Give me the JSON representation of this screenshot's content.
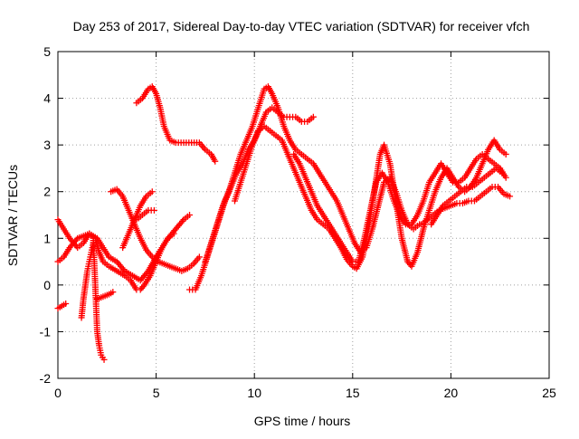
{
  "chart_data": {
    "type": "scatter",
    "title": "Day 253 of 2017, Sidereal Day-to-day VTEC variation (SDTVAR) for receiver vfch",
    "xlabel": "GPS time / hours",
    "ylabel": "SDTVAR / TECUs",
    "xlim": [
      0,
      25
    ],
    "ylim": [
      -2,
      5
    ],
    "x_ticks": [
      "0",
      "5",
      "10",
      "15",
      "20",
      "25"
    ],
    "y_ticks": [
      "-2",
      "-1",
      "0",
      "1",
      "2",
      "3",
      "4",
      "5"
    ],
    "grid": true,
    "marker": "plus",
    "color": "#ff0000",
    "series": [
      {
        "points": [
          [
            0.0,
            1.4
          ],
          [
            0.3,
            1.2
          ],
          [
            0.6,
            1.0
          ],
          [
            1.0,
            0.8
          ],
          [
            1.3,
            0.9
          ],
          [
            1.6,
            1.1
          ],
          [
            1.9,
            1.0
          ],
          [
            2.1,
            0.7
          ],
          [
            2.3,
            0.5
          ],
          [
            2.6,
            0.4
          ],
          [
            3.0,
            0.3
          ],
          [
            3.4,
            0.2
          ],
          [
            3.7,
            0.1
          ],
          [
            4.0,
            -0.1
          ],
          [
            4.2,
            -0.1
          ],
          [
            4.4,
            0.0
          ],
          [
            4.7,
            0.2
          ],
          [
            5.0,
            0.5
          ],
          [
            5.3,
            0.8
          ],
          [
            5.6,
            1.0
          ],
          [
            6.0,
            1.2
          ],
          [
            6.4,
            1.4
          ],
          [
            6.7,
            1.5
          ]
        ]
      },
      {
        "points": [
          [
            0.0,
            0.5
          ],
          [
            0.3,
            0.6
          ],
          [
            0.6,
            0.8
          ],
          [
            1.0,
            1.0
          ],
          [
            1.3,
            1.05
          ],
          [
            1.6,
            1.1
          ],
          [
            2.0,
            1.0
          ],
          [
            2.3,
            0.8
          ],
          [
            2.6,
            0.6
          ],
          [
            3.0,
            0.5
          ],
          [
            3.4,
            0.3
          ],
          [
            3.8,
            0.2
          ],
          [
            4.2,
            0.1
          ],
          [
            4.6,
            0.3
          ],
          [
            5.0,
            0.6
          ],
          [
            5.3,
            0.8
          ],
          [
            5.6,
            1.0
          ],
          [
            5.9,
            1.1
          ]
        ]
      },
      {
        "points": [
          [
            0.0,
            -0.5
          ],
          [
            0.2,
            -0.45
          ],
          [
            0.4,
            -0.4
          ]
        ]
      },
      {
        "points": [
          [
            1.2,
            -0.7
          ],
          [
            1.3,
            -0.3
          ],
          [
            1.4,
            0.0
          ],
          [
            1.5,
            0.3
          ],
          [
            1.6,
            0.5
          ],
          [
            1.7,
            0.7
          ],
          [
            1.8,
            0.9
          ]
        ]
      },
      {
        "points": [
          [
            1.8,
            1.0
          ],
          [
            1.85,
            0.5
          ],
          [
            1.9,
            0.0
          ],
          [
            1.95,
            -0.5
          ],
          [
            2.0,
            -1.0
          ],
          [
            2.1,
            -1.3
          ],
          [
            2.2,
            -1.5
          ],
          [
            2.35,
            -1.6
          ]
        ]
      },
      {
        "points": [
          [
            2.0,
            -0.3
          ],
          [
            2.3,
            -0.25
          ],
          [
            2.6,
            -0.2
          ],
          [
            2.8,
            -0.15
          ]
        ]
      },
      {
        "points": [
          [
            2.7,
            2.0
          ],
          [
            3.0,
            2.05
          ],
          [
            3.3,
            1.9
          ],
          [
            3.6,
            1.6
          ],
          [
            3.9,
            1.3
          ],
          [
            4.2,
            1.0
          ],
          [
            4.5,
            0.75
          ],
          [
            4.8,
            0.6
          ],
          [
            5.1,
            0.5
          ],
          [
            5.4,
            0.45
          ],
          [
            5.7,
            0.4
          ],
          [
            6.0,
            0.35
          ],
          [
            6.3,
            0.3
          ],
          [
            6.6,
            0.35
          ],
          [
            6.9,
            0.45
          ],
          [
            7.2,
            0.6
          ]
        ]
      },
      {
        "points": [
          [
            3.3,
            0.8
          ],
          [
            3.6,
            1.1
          ],
          [
            3.9,
            1.4
          ],
          [
            4.2,
            1.7
          ],
          [
            4.5,
            1.9
          ],
          [
            4.8,
            2.0
          ]
        ]
      },
      {
        "points": [
          [
            4.0,
            1.4
          ],
          [
            4.3,
            1.5
          ],
          [
            4.6,
            1.6
          ],
          [
            4.9,
            1.6
          ]
        ]
      },
      {
        "points": [
          [
            4.0,
            3.9
          ],
          [
            4.3,
            4.0
          ],
          [
            4.6,
            4.2
          ],
          [
            4.8,
            4.25
          ],
          [
            5.0,
            4.1
          ],
          [
            5.2,
            3.8
          ],
          [
            5.4,
            3.4
          ],
          [
            5.7,
            3.1
          ],
          [
            6.0,
            3.05
          ],
          [
            6.4,
            3.05
          ],
          [
            6.8,
            3.05
          ],
          [
            7.2,
            3.05
          ],
          [
            7.5,
            2.9
          ],
          [
            7.8,
            2.8
          ],
          [
            8.0,
            2.65
          ]
        ]
      },
      {
        "points": [
          [
            6.7,
            -0.1
          ],
          [
            7.0,
            -0.1
          ],
          [
            7.3,
            0.2
          ],
          [
            7.6,
            0.6
          ],
          [
            7.9,
            1.0
          ],
          [
            8.2,
            1.4
          ],
          [
            8.5,
            1.8
          ],
          [
            8.8,
            2.1
          ],
          [
            9.1,
            2.4
          ],
          [
            9.4,
            2.6
          ],
          [
            9.7,
            2.9
          ],
          [
            10.0,
            3.1
          ],
          [
            10.3,
            3.4
          ],
          [
            10.6,
            3.7
          ],
          [
            10.9,
            3.8
          ],
          [
            11.2,
            3.7
          ],
          [
            11.5,
            3.6
          ],
          [
            11.8,
            3.6
          ],
          [
            12.1,
            3.6
          ],
          [
            12.4,
            3.5
          ],
          [
            12.7,
            3.5
          ],
          [
            13.0,
            3.6
          ]
        ]
      },
      {
        "points": [
          [
            7.5,
            0.5
          ],
          [
            7.8,
            0.9
          ],
          [
            8.1,
            1.3
          ],
          [
            8.4,
            1.7
          ],
          [
            8.7,
            2.0
          ],
          [
            9.0,
            2.4
          ],
          [
            9.3,
            2.8
          ],
          [
            9.6,
            3.1
          ],
          [
            9.9,
            3.4
          ],
          [
            10.2,
            3.8
          ],
          [
            10.5,
            4.2
          ],
          [
            10.7,
            4.25
          ],
          [
            10.9,
            4.1
          ],
          [
            11.2,
            3.8
          ],
          [
            11.5,
            3.4
          ],
          [
            11.8,
            3.1
          ],
          [
            12.1,
            2.9
          ],
          [
            12.4,
            2.8
          ],
          [
            12.7,
            2.7
          ],
          [
            13.0,
            2.6
          ],
          [
            13.3,
            2.4
          ],
          [
            13.6,
            2.2
          ],
          [
            13.9,
            2.0
          ],
          [
            14.2,
            1.8
          ],
          [
            14.5,
            1.5
          ],
          [
            14.8,
            1.2
          ],
          [
            15.1,
            0.9
          ],
          [
            15.4,
            0.7
          ],
          [
            15.7,
            0.8
          ],
          [
            16.0,
            1.2
          ],
          [
            16.3,
            1.7
          ],
          [
            16.6,
            2.2
          ],
          [
            16.9,
            2.3
          ],
          [
            17.2,
            2.0
          ],
          [
            17.5,
            1.6
          ],
          [
            17.8,
            1.3
          ],
          [
            18.1,
            1.2
          ],
          [
            18.4,
            1.3
          ]
        ]
      },
      {
        "points": [
          [
            9.0,
            1.8
          ],
          [
            9.3,
            2.2
          ],
          [
            9.6,
            2.6
          ],
          [
            9.9,
            3.0
          ],
          [
            10.2,
            3.3
          ],
          [
            10.5,
            3.4
          ],
          [
            10.8,
            3.3
          ],
          [
            11.1,
            3.2
          ],
          [
            11.4,
            3.1
          ],
          [
            11.7,
            2.8
          ],
          [
            12.0,
            2.5
          ],
          [
            12.3,
            2.2
          ],
          [
            12.6,
            1.9
          ],
          [
            12.9,
            1.6
          ],
          [
            13.2,
            1.4
          ],
          [
            13.5,
            1.3
          ],
          [
            13.8,
            1.2
          ],
          [
            14.1,
            1.0
          ],
          [
            14.4,
            0.8
          ],
          [
            14.7,
            0.55
          ],
          [
            15.0,
            0.4
          ],
          [
            15.2,
            0.35
          ],
          [
            15.5,
            0.6
          ],
          [
            15.8,
            1.2
          ],
          [
            16.1,
            2.0
          ],
          [
            16.4,
            2.8
          ],
          [
            16.6,
            3.0
          ],
          [
            16.9,
            2.6
          ],
          [
            17.2,
            1.8
          ],
          [
            17.5,
            1.0
          ],
          [
            17.8,
            0.5
          ],
          [
            18.0,
            0.4
          ],
          [
            18.3,
            0.7
          ],
          [
            18.6,
            1.2
          ],
          [
            18.9,
            1.6
          ],
          [
            19.2,
            2.0
          ],
          [
            19.5,
            2.3
          ],
          [
            19.8,
            2.5
          ],
          [
            20.1,
            2.3
          ],
          [
            20.4,
            2.1
          ],
          [
            20.7,
            2.0
          ],
          [
            21.0,
            2.1
          ],
          [
            21.3,
            2.3
          ],
          [
            21.6,
            2.6
          ],
          [
            21.9,
            2.9
          ],
          [
            22.2,
            3.1
          ],
          [
            22.5,
            2.9
          ],
          [
            22.8,
            2.8
          ]
        ]
      },
      {
        "points": [
          [
            12.0,
            2.8
          ],
          [
            12.3,
            2.6
          ],
          [
            12.6,
            2.3
          ],
          [
            12.9,
            2.0
          ],
          [
            13.2,
            1.7
          ],
          [
            13.5,
            1.5
          ],
          [
            13.8,
            1.3
          ],
          [
            14.1,
            1.1
          ],
          [
            14.4,
            0.9
          ],
          [
            14.7,
            0.7
          ],
          [
            15.0,
            0.5
          ],
          [
            15.3,
            0.5
          ],
          [
            15.6,
            1.0
          ],
          [
            15.9,
            1.6
          ],
          [
            16.2,
            2.2
          ],
          [
            16.5,
            2.4
          ],
          [
            16.8,
            2.2
          ],
          [
            17.1,
            1.8
          ],
          [
            17.4,
            1.5
          ],
          [
            17.7,
            1.3
          ],
          [
            18.0,
            1.3
          ],
          [
            18.3,
            1.5
          ],
          [
            18.6,
            1.8
          ],
          [
            18.9,
            2.2
          ],
          [
            19.2,
            2.4
          ],
          [
            19.5,
            2.6
          ],
          [
            19.8,
            2.4
          ],
          [
            20.1,
            2.2
          ],
          [
            20.4,
            2.2
          ],
          [
            20.7,
            2.3
          ],
          [
            21.0,
            2.5
          ],
          [
            21.3,
            2.7
          ],
          [
            21.6,
            2.8
          ],
          [
            21.9,
            2.7
          ],
          [
            22.2,
            2.6
          ],
          [
            22.5,
            2.5
          ],
          [
            22.8,
            2.3
          ]
        ]
      },
      {
        "points": [
          [
            18.5,
            1.3
          ],
          [
            18.8,
            1.4
          ],
          [
            19.1,
            1.5
          ],
          [
            19.4,
            1.6
          ],
          [
            19.7,
            1.65
          ],
          [
            20.0,
            1.7
          ],
          [
            20.3,
            1.75
          ],
          [
            20.6,
            1.75
          ],
          [
            20.9,
            1.8
          ],
          [
            21.2,
            1.8
          ],
          [
            21.5,
            1.9
          ],
          [
            21.8,
            2.0
          ],
          [
            22.1,
            2.1
          ],
          [
            22.4,
            2.1
          ],
          [
            22.7,
            1.95
          ],
          [
            23.0,
            1.9
          ]
        ]
      },
      {
        "points": [
          [
            19.0,
            1.3
          ],
          [
            19.3,
            1.5
          ],
          [
            19.6,
            1.7
          ],
          [
            19.9,
            1.8
          ],
          [
            20.2,
            1.9
          ],
          [
            20.5,
            2.0
          ],
          [
            20.8,
            2.1
          ],
          [
            21.1,
            2.1
          ],
          [
            21.4,
            2.2
          ],
          [
            21.7,
            2.3
          ],
          [
            22.0,
            2.4
          ],
          [
            22.3,
            2.5
          ],
          [
            22.6,
            2.4
          ]
        ]
      }
    ]
  }
}
